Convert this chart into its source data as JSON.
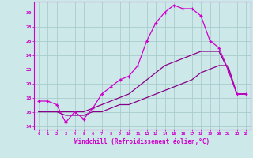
{
  "xlabel": "Windchill (Refroidissement éolien,°C)",
  "xlim": [
    -0.5,
    23.5
  ],
  "ylim": [
    13.5,
    31.5
  ],
  "yticks": [
    14,
    16,
    18,
    20,
    22,
    24,
    26,
    28,
    30
  ],
  "xticks": [
    0,
    1,
    2,
    3,
    4,
    5,
    6,
    7,
    8,
    9,
    10,
    11,
    12,
    13,
    14,
    15,
    16,
    17,
    18,
    19,
    20,
    21,
    22,
    23
  ],
  "bg_color": "#cce8e8",
  "grid_color": "#aacccc",
  "line_color": "#cc00cc",
  "line_color2": "#880088",
  "series1": [
    17.5,
    17.5,
    17.0,
    14.5,
    16.0,
    15.0,
    16.5,
    18.5,
    19.5,
    20.5,
    21.0,
    22.5,
    26.0,
    28.5,
    30.0,
    31.0,
    30.5,
    30.5,
    29.5,
    26.0,
    25.0,
    22.0,
    18.5,
    18.5
  ],
  "series2": [
    16.0,
    16.0,
    16.0,
    16.0,
    16.0,
    16.0,
    16.5,
    17.0,
    17.5,
    18.0,
    18.5,
    19.5,
    20.5,
    21.5,
    22.5,
    23.0,
    23.5,
    24.0,
    24.5,
    24.5,
    24.5,
    22.0,
    18.5,
    18.5
  ],
  "series3": [
    16.0,
    16.0,
    16.0,
    15.5,
    15.5,
    15.5,
    16.0,
    16.0,
    16.5,
    17.0,
    17.0,
    17.5,
    18.0,
    18.5,
    19.0,
    19.5,
    20.0,
    20.5,
    21.5,
    22.0,
    22.5,
    22.5,
    18.5,
    18.5
  ]
}
